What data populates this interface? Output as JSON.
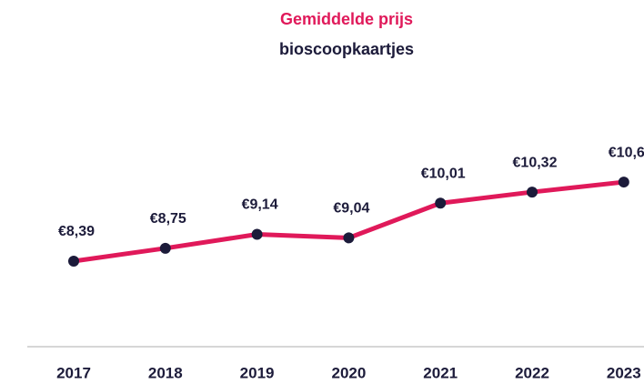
{
  "chart_data": {
    "type": "line",
    "title": "Gemiddelde prijs",
    "subtitle": "bioscoopkaartjes",
    "categories": [
      "2017",
      "2018",
      "2019",
      "2020",
      "2021",
      "2022",
      "2023"
    ],
    "series": [
      {
        "color": "#e0195a",
        "values": [
          8.39,
          8.75,
          9.14,
          9.04,
          10.01,
          10.32,
          10.6
        ],
        "value_labels": [
          "€8,39",
          "€8,75",
          "€9,14",
          "€9,04",
          "€10,01",
          "€10,32",
          "€10,6"
        ]
      }
    ],
    "ylim": [
      6,
      12
    ],
    "grid": false
  }
}
